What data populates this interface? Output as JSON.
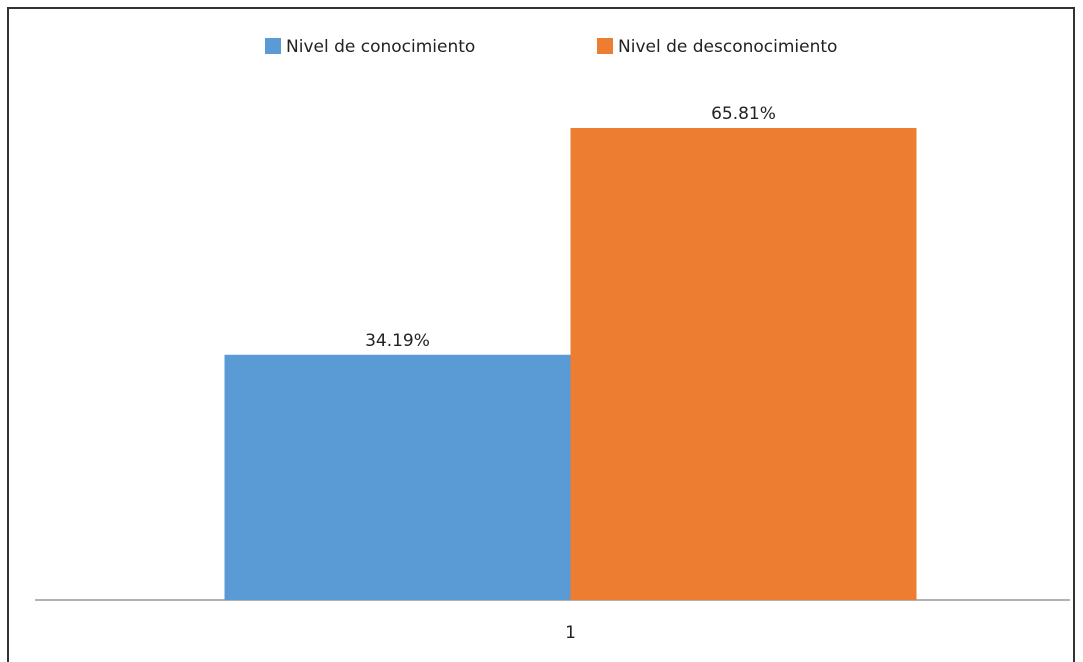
{
  "chart_data": {
    "type": "bar",
    "categories": [
      "1"
    ],
    "series": [
      {
        "name": "Nivel de conocimiento",
        "color": "#5b9bd5",
        "values": [
          34.19
        ],
        "value_labels": [
          "34.19%"
        ]
      },
      {
        "name": "Nivel de desconocimiento",
        "color": "#ed7d31",
        "values": [
          65.81
        ],
        "value_labels": [
          "65.81%"
        ]
      }
    ],
    "legend": "top"
  }
}
